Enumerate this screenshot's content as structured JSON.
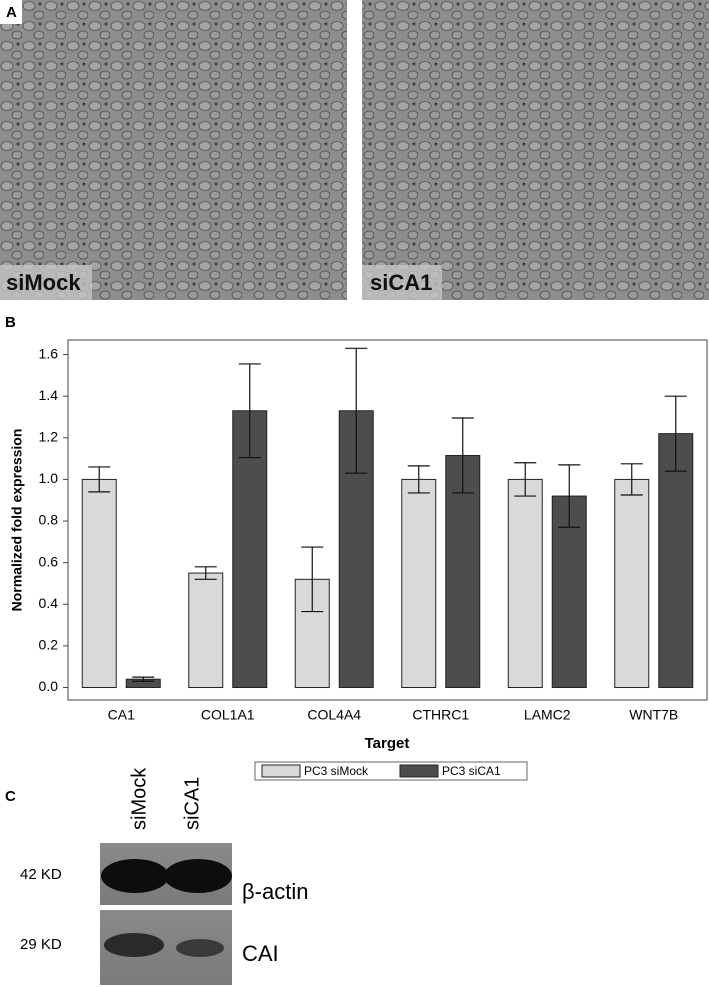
{
  "panels": {
    "a_label": "A",
    "b_label": "B",
    "c_label": "C",
    "image_left_label": "siMock",
    "image_right_label": "siCA1",
    "blot_lanes": [
      "siMock",
      "siCA1"
    ],
    "blot_sizes": [
      "42 KD",
      "29 KD"
    ],
    "blot_proteins": [
      "β-actin",
      "CAI"
    ]
  },
  "chart_data": {
    "type": "bar",
    "y_label": "Normalized fold expression",
    "x_label": "Target",
    "categories": [
      "CA1",
      "COL1A1",
      "COL4A4",
      "CTHRC1",
      "LAMC2",
      "WNT7B"
    ],
    "series": [
      {
        "name": "PC3 siMock",
        "color": "#d9d9d9",
        "values": [
          1.0,
          0.55,
          0.52,
          1.0,
          1.0,
          1.0
        ],
        "errors": [
          0.06,
          0.03,
          0.155,
          0.065,
          0.08,
          0.075
        ]
      },
      {
        "name": "PC3 siCA1",
        "color": "#4d4d4d",
        "values": [
          0.04,
          1.33,
          1.33,
          1.115,
          0.92,
          1.22
        ],
        "errors": [
          0.01,
          0.225,
          0.3,
          0.18,
          0.15,
          0.18
        ]
      }
    ],
    "ylim": [
      -0.06,
      1.67
    ],
    "yticks": [
      {
        "value": 0,
        "label": "0.0"
      },
      0.2,
      0.4,
      0.6,
      0.8,
      {
        "value": 1,
        "label": "1.0"
      },
      1.2,
      1.4,
      1.6
    ],
    "grid": false
  }
}
